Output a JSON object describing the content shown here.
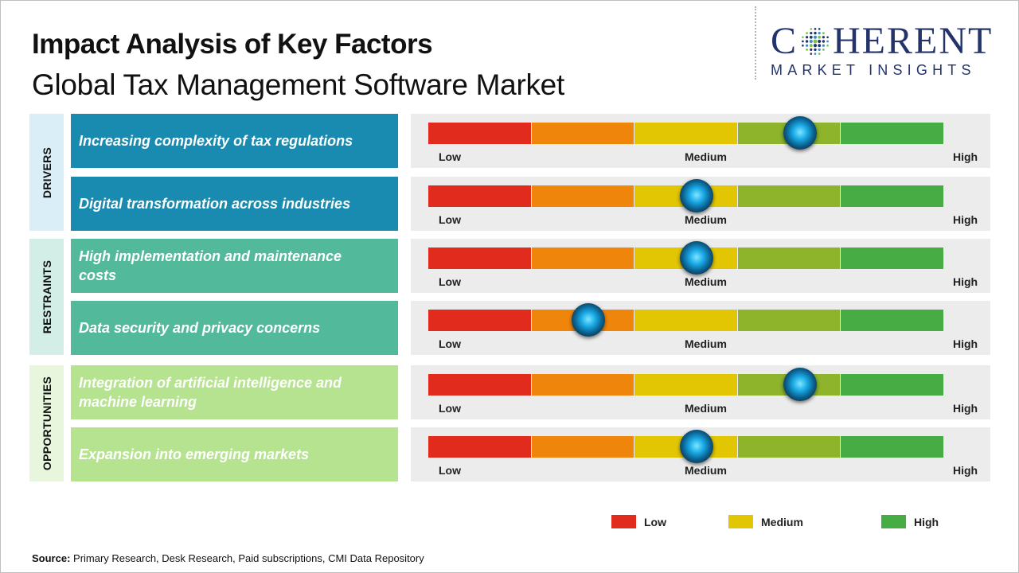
{
  "header": {
    "title": "Impact Analysis of Key Factors",
    "subtitle": "Global Tax Management Software Market"
  },
  "logo": {
    "main_left": "C",
    "main_right": "HERENT",
    "sub": "MARKET INSIGHTS"
  },
  "chart_data": {
    "type": "table",
    "scale": [
      "Low",
      "Medium",
      "High"
    ],
    "colors": {
      "seg1": "#e12b1d",
      "seg2": "#ef860b",
      "seg3": "#e2c604",
      "seg4": "#8db42b",
      "seg5": "#47ac43",
      "drivers": "#1a8bb0",
      "restraints": "#52b99a",
      "opportunities": "#b6e38f",
      "drivers_light": "#daeef7",
      "restraints_light": "#d3eee6",
      "opportunities_light": "#e8f6de"
    },
    "categories": [
      {
        "name": "DRIVERS",
        "factors": [
          {
            "label": "Increasing complexity of tax regulations",
            "impact": 0.72
          },
          {
            "label": "Digital transformation across industries",
            "impact": 0.52
          }
        ]
      },
      {
        "name": "RESTRAINTS",
        "factors": [
          {
            "label": "High implementation and maintenance costs",
            "impact": 0.52
          },
          {
            "label": "Data security and privacy concerns",
            "impact": 0.31
          }
        ]
      },
      {
        "name": "OPPORTUNITIES",
        "factors": [
          {
            "label": "Integration of artificial intelligence and machine learning",
            "impact": 0.72
          },
          {
            "label": "Expansion into emerging markets",
            "impact": 0.52
          }
        ]
      }
    ],
    "legend": [
      {
        "label": "Low",
        "color": "#e12b1d"
      },
      {
        "label": "Medium",
        "color": "#e2c604"
      },
      {
        "label": "High",
        "color": "#47ac43"
      }
    ]
  },
  "source": {
    "prefix": "Source:",
    "text": "Primary Research, Desk Research, Paid subscriptions, CMI Data Repository"
  }
}
